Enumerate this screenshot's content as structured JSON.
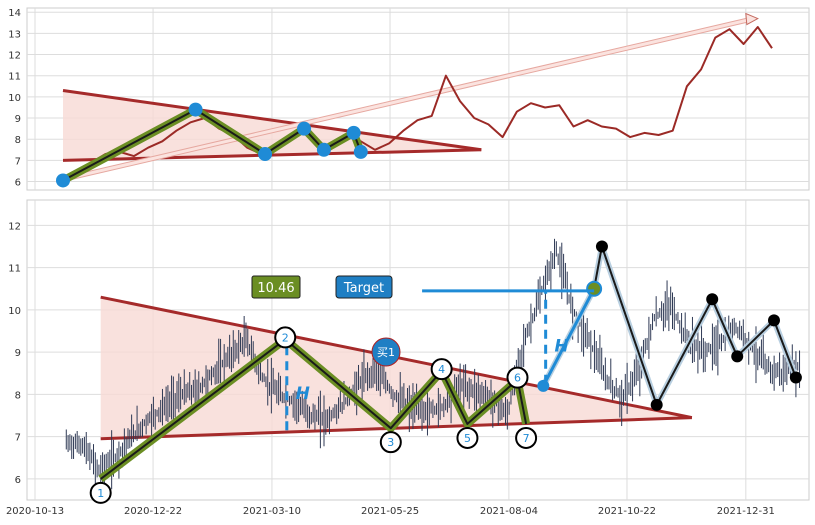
{
  "colors": {
    "price_top": "#9b2a26",
    "trendline": "#a52a2a",
    "triangle_fill": "#f8d9d5",
    "zigzag_outer": "#6b8e23",
    "zigzag_inner": "#1a1a1a",
    "pivot_blue": "#1f8bd6",
    "candle": "#2f3a55",
    "label_bg": "#6b8e23",
    "target_bg": "#1f7fc4",
    "buy_bg": "#1f7fc4"
  },
  "chart_data": [
    {
      "type": "line",
      "panel": "overview",
      "ylim": [
        5.6,
        14.2
      ],
      "yticks": [
        6,
        7,
        8,
        9,
        10,
        11,
        12,
        13,
        14
      ],
      "xlim": [
        0,
        100
      ],
      "grid": true,
      "series": [
        {
          "x": [
            0,
            2,
            4,
            6,
            8,
            10,
            12,
            14,
            16,
            18,
            20,
            22,
            24,
            26,
            28,
            30,
            32,
            34,
            36,
            38,
            40,
            42,
            44,
            46,
            48,
            50,
            52,
            54,
            56,
            58,
            60,
            62,
            64,
            66,
            68,
            70,
            72,
            74,
            76,
            78,
            80,
            82,
            84,
            86,
            88,
            90,
            92,
            94,
            96,
            98,
            100
          ],
          "values": [
            6.1,
            6.5,
            6.9,
            7.3,
            7.4,
            7.2,
            7.6,
            7.9,
            8.4,
            8.8,
            9.0,
            8.5,
            8.2,
            7.6,
            7.3,
            7.6,
            8.1,
            8.3,
            7.6,
            7.8,
            8.2,
            7.9,
            7.5,
            7.8,
            8.4,
            8.9,
            9.1,
            11.0,
            9.8,
            9.0,
            8.7,
            8.1,
            9.3,
            9.7,
            9.5,
            9.6,
            8.6,
            8.9,
            8.6,
            8.5,
            8.1,
            8.3,
            8.2,
            8.4,
            10.5,
            11.3,
            12.8,
            13.2,
            12.5,
            13.3,
            12.3
          ]
        }
      ],
      "pivots": [
        {
          "x": 0,
          "y": 6.05
        },
        {
          "x": 18.7,
          "y": 9.4
        },
        {
          "x": 28.5,
          "y": 7.3
        },
        {
          "x": 34.0,
          "y": 8.5
        },
        {
          "x": 36.8,
          "y": 7.5
        },
        {
          "x": 41.0,
          "y": 8.3
        },
        {
          "x": 42.0,
          "y": 7.4
        }
      ],
      "upper_line": {
        "x": [
          0,
          59
        ],
        "y": [
          10.3,
          7.5
        ]
      },
      "lower_line": {
        "x": [
          0,
          59
        ],
        "y": [
          7.0,
          7.5
        ]
      },
      "projection_arrow": {
        "x": [
          0,
          98
        ],
        "y": [
          6.1,
          13.7
        ]
      }
    },
    {
      "type": "candlestick",
      "panel": "detail",
      "ylim": [
        5.5,
        12.6
      ],
      "yticks": [
        6,
        7,
        8,
        9,
        10,
        11,
        12
      ],
      "xlim": [
        0,
        100
      ],
      "xticks": [
        "2020-10-13",
        "2020-12-22",
        "2021-03-10",
        "2021-05-25",
        "2021-08-04",
        "2021-10-22",
        "2021-12-31"
      ],
      "xtick_positions": [
        0,
        15.1,
        30.3,
        45.4,
        60.6,
        75.7,
        90.9
      ],
      "grid": true,
      "close": [
        6.85,
        6.8,
        6.2,
        6.5,
        7.0,
        7.4,
        7.7,
        8.0,
        8.1,
        8.5,
        8.9,
        9.3,
        8.4,
        8.0,
        7.8,
        7.5,
        7.4,
        7.8,
        8.3,
        8.6,
        8.0,
        7.7,
        7.6,
        7.7,
        8.2,
        8.1,
        7.9,
        7.5,
        9.2,
        10.3,
        11.4,
        10.0,
        9.3,
        8.4,
        7.9,
        8.5,
        9.8,
        10.1,
        9.3,
        9.0,
        9.2,
        9.6,
        9.1,
        8.6,
        8.5,
        8.7
      ],
      "pivots": [
        {
          "label": "1",
          "x": 8.4,
          "y": 6.0
        },
        {
          "label": "2",
          "x": 32.0,
          "y": 9.3
        },
        {
          "label": "3",
          "x": 45.5,
          "y": 7.2
        },
        {
          "label": "4",
          "x": 52.0,
          "y": 8.55
        },
        {
          "label": "5",
          "x": 55.3,
          "y": 7.3
        },
        {
          "label": "6",
          "x": 61.7,
          "y": 8.35
        },
        {
          "label": "7",
          "x": 62.8,
          "y": 7.3
        }
      ],
      "zigzag_ext": [
        {
          "x": 65.0,
          "y": 8.2
        },
        {
          "x": 71.5,
          "y": 10.5
        },
        {
          "x": 72.5,
          "y": 11.5
        },
        {
          "x": 79.5,
          "y": 7.75
        },
        {
          "x": 86.6,
          "y": 10.25
        },
        {
          "x": 89.8,
          "y": 8.9
        },
        {
          "x": 94.5,
          "y": 9.75
        },
        {
          "x": 97.3,
          "y": 8.4
        }
      ],
      "upper_line": {
        "x": [
          8.4,
          84
        ],
        "y": [
          10.3,
          7.45
        ]
      },
      "lower_line": {
        "x": [
          8.4,
          84
        ],
        "y": [
          6.95,
          7.45
        ]
      },
      "height_marks": [
        {
          "x": 32.2,
          "y": [
            7.15,
            9.3
          ],
          "label": "H"
        },
        {
          "x": 65.3,
          "y": [
            8.25,
            10.45
          ],
          "label": "H"
        }
      ],
      "target_line": {
        "x": [
          49.5,
          71.5
        ],
        "y": 10.45
      },
      "annotations": {
        "price_label": "10.46",
        "target_label": "Target",
        "buy_label": "买1"
      }
    }
  ]
}
